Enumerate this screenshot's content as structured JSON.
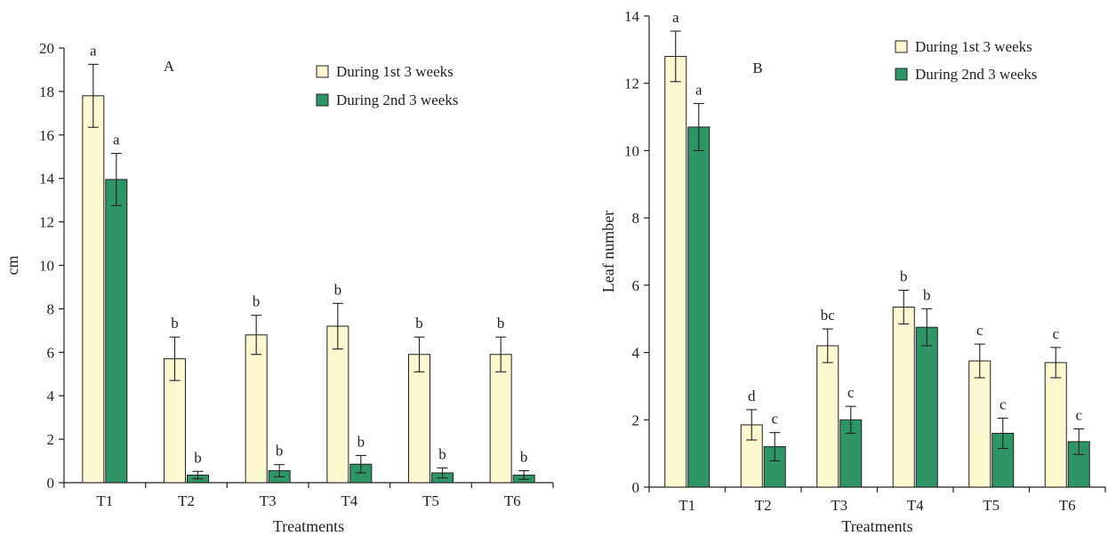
{
  "chart_data": [
    {
      "type": "bar",
      "panel": "A",
      "title": "",
      "xlabel": "Treatments",
      "ylabel": "cm",
      "ylim": [
        0,
        20
      ],
      "yticks": [
        0,
        2,
        4,
        6,
        8,
        10,
        12,
        14,
        16,
        18,
        20
      ],
      "categories": [
        "T1",
        "T2",
        "T3",
        "T4",
        "T5",
        "T6"
      ],
      "legend_position": "top-right",
      "series": [
        {
          "name": "During 1st 3 weeks",
          "color": "#fbf7cf",
          "values": [
            17.8,
            5.7,
            6.8,
            7.2,
            5.9,
            5.9
          ],
          "errors": [
            1.45,
            1.0,
            0.9,
            1.05,
            0.8,
            0.8
          ],
          "labels": [
            "a",
            "b",
            "b",
            "b",
            "b",
            "b"
          ]
        },
        {
          "name": "During 2nd 3 weeks",
          "color": "#2e9666",
          "values": [
            13.95,
            0.35,
            0.55,
            0.85,
            0.45,
            0.35
          ],
          "errors": [
            1.2,
            0.17,
            0.28,
            0.4,
            0.23,
            0.2
          ],
          "labels": [
            "a",
            "b",
            "b",
            "b",
            "b",
            "b"
          ]
        }
      ]
    },
    {
      "type": "bar",
      "panel": "B",
      "title": "",
      "xlabel": "Treatments",
      "ylabel": "Leaf number",
      "ylim": [
        0,
        14
      ],
      "yticks": [
        0,
        2,
        4,
        6,
        8,
        10,
        12,
        14
      ],
      "categories": [
        "T1",
        "T2",
        "T3",
        "T4",
        "T5",
        "T6"
      ],
      "legend_position": "top-right",
      "series": [
        {
          "name": "During 1st 3 weeks",
          "color": "#fbf7cf",
          "values": [
            12.8,
            1.85,
            4.2,
            5.35,
            3.75,
            3.7
          ],
          "errors": [
            0.75,
            0.45,
            0.5,
            0.5,
            0.5,
            0.45
          ],
          "labels": [
            "a",
            "d",
            "bc",
            "b",
            "c",
            "c"
          ]
        },
        {
          "name": "During 2nd 3 weeks",
          "color": "#2e9666",
          "values": [
            10.7,
            1.2,
            2.0,
            4.75,
            1.6,
            1.35
          ],
          "errors": [
            0.7,
            0.42,
            0.4,
            0.55,
            0.45,
            0.38
          ],
          "labels": [
            "a",
            "c",
            "c",
            "b",
            "c",
            "c"
          ]
        }
      ]
    }
  ]
}
